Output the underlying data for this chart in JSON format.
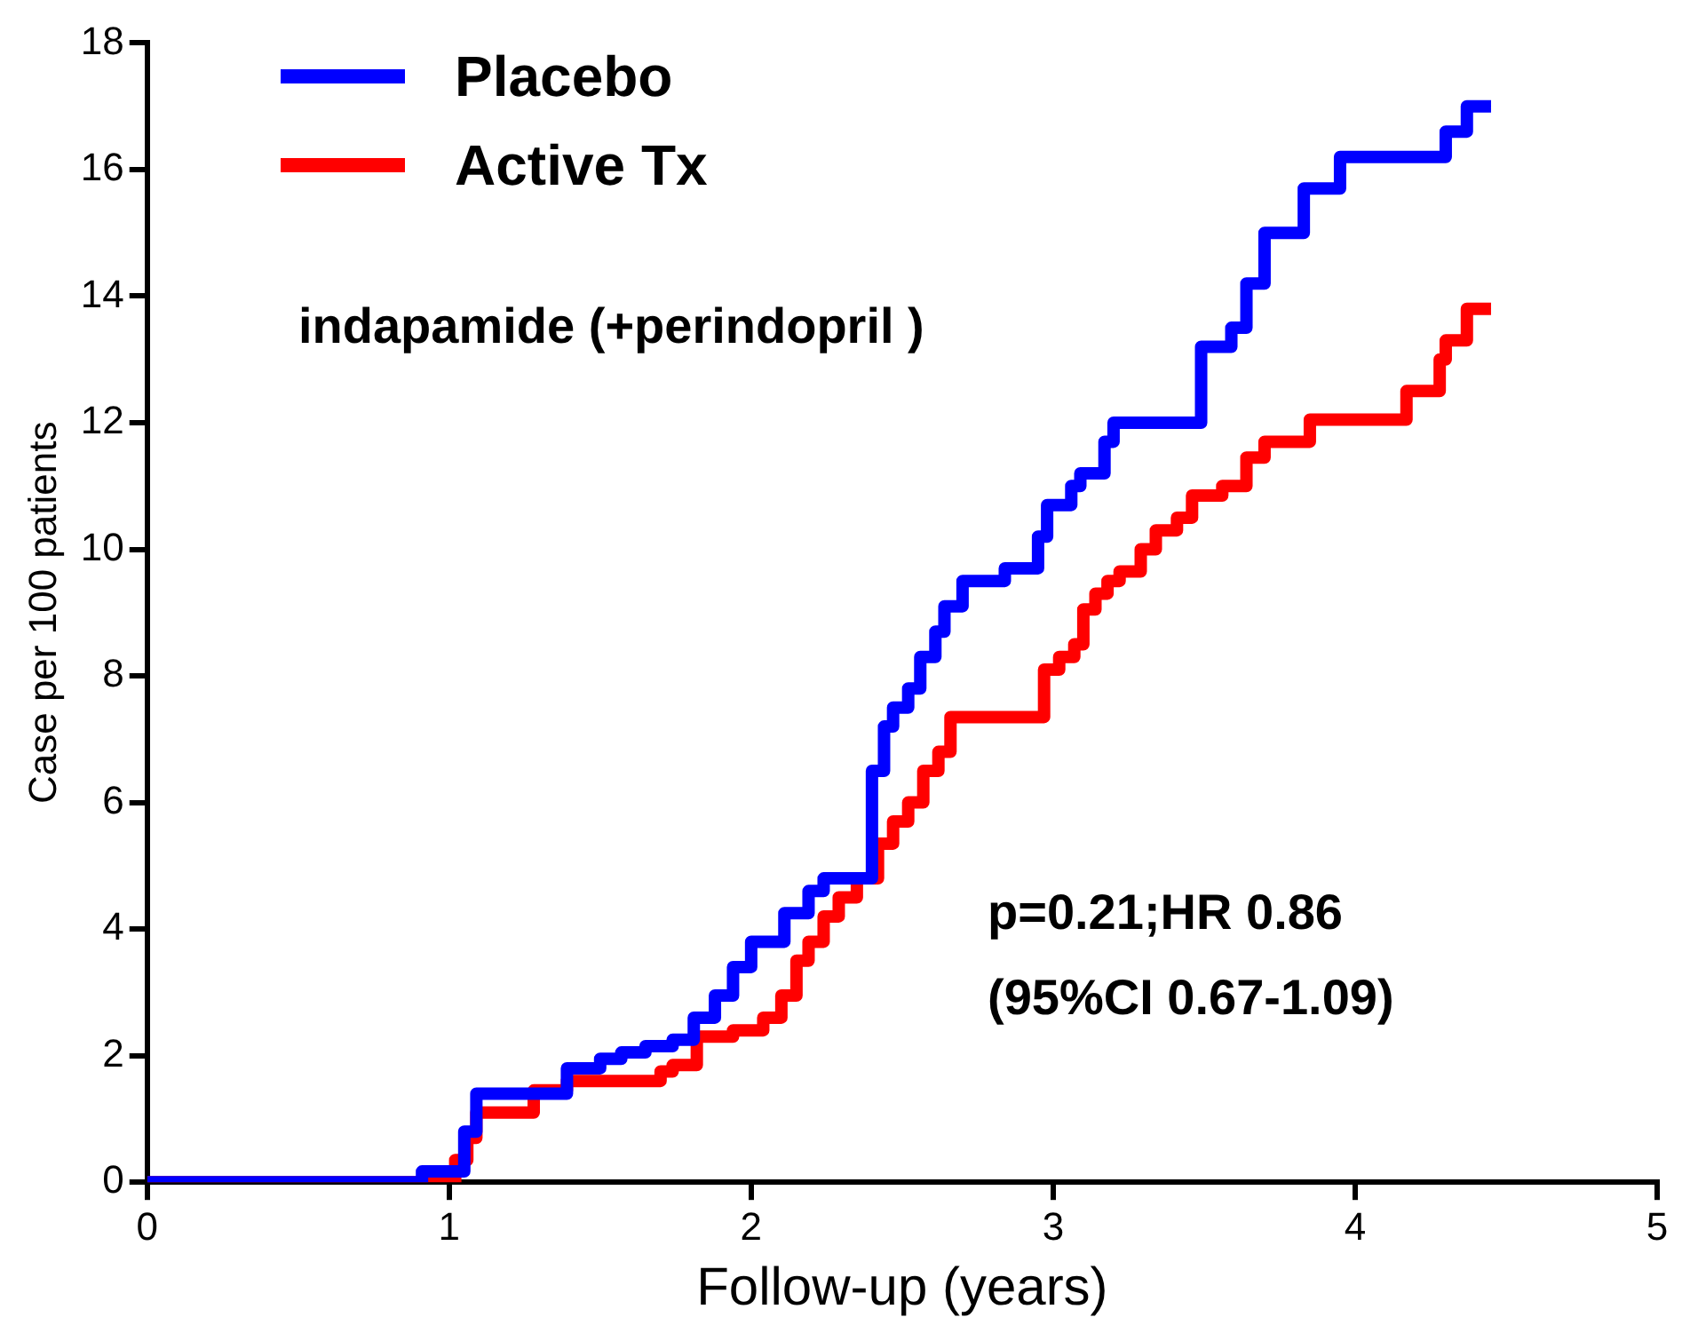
{
  "chart_data": {
    "type": "step",
    "xlabel": "Follow-up (years)",
    "ylabel": "Case per 100 patients",
    "xlim": [
      0,
      5
    ],
    "xticks": [
      0,
      1,
      2,
      3,
      4,
      5
    ],
    "ylim": [
      0,
      18
    ],
    "yticks": [
      0,
      2,
      4,
      6,
      8,
      10,
      12,
      14,
      16,
      18
    ],
    "grid": false,
    "legend": "top left",
    "marker": "none",
    "line_style": "solid",
    "annotations": [
      "indapamide (+perindopril )",
      "p=0.21;HR 0.86",
      "(95%CI 0.67-1.09)"
    ],
    "series": [
      {
        "name": "Placebo",
        "color": "#0000ff",
        "x": [
          0,
          0.91,
          1.05,
          1.09,
          1.39,
          1.5,
          1.57,
          1.65,
          1.74,
          1.81,
          1.88,
          1.94,
          2.0,
          2.11,
          2.19,
          2.24,
          2.4,
          2.44,
          2.47,
          2.52,
          2.56,
          2.61,
          2.64,
          2.7,
          2.84,
          2.95,
          2.98,
          3.06,
          3.09,
          3.17,
          3.2,
          3.23,
          3.49,
          3.59,
          3.64,
          3.7,
          3.83,
          3.95,
          4.3,
          4.37,
          4.45
        ],
        "values": [
          0,
          0.17,
          0.8,
          1.4,
          1.8,
          1.95,
          2.05,
          2.15,
          2.25,
          2.6,
          2.95,
          3.4,
          3.8,
          4.25,
          4.6,
          4.8,
          6.5,
          7.2,
          7.5,
          7.8,
          8.3,
          8.7,
          9.1,
          9.5,
          9.7,
          10.2,
          10.7,
          11.0,
          11.2,
          11.7,
          12.0,
          12.0,
          13.2,
          13.5,
          14.2,
          15.0,
          15.7,
          16.2,
          16.6,
          17.0,
          17.0
        ]
      },
      {
        "name": "Active Tx",
        "color": "#ff0000",
        "x": [
          0,
          1.02,
          1.06,
          1.09,
          1.28,
          1.39,
          1.7,
          1.74,
          1.82,
          1.94,
          2.04,
          2.1,
          2.15,
          2.19,
          2.24,
          2.29,
          2.35,
          2.42,
          2.47,
          2.52,
          2.57,
          2.62,
          2.66,
          2.97,
          3.02,
          3.07,
          3.1,
          3.14,
          3.18,
          3.22,
          3.29,
          3.34,
          3.41,
          3.46,
          3.56,
          3.64,
          3.7,
          3.85,
          4.17,
          4.28,
          4.3,
          4.37,
          4.45
        ],
        "values": [
          0,
          0.35,
          0.7,
          1.1,
          1.45,
          1.6,
          1.75,
          1.85,
          2.3,
          2.4,
          2.6,
          2.95,
          3.5,
          3.8,
          4.2,
          4.5,
          4.8,
          5.35,
          5.7,
          6.0,
          6.5,
          6.8,
          7.35,
          8.1,
          8.3,
          8.5,
          9.05,
          9.3,
          9.5,
          9.65,
          10.0,
          10.3,
          10.5,
          10.85,
          11.0,
          11.45,
          11.7,
          12.05,
          12.5,
          13.0,
          13.3,
          13.8,
          13.8
        ]
      }
    ]
  }
}
